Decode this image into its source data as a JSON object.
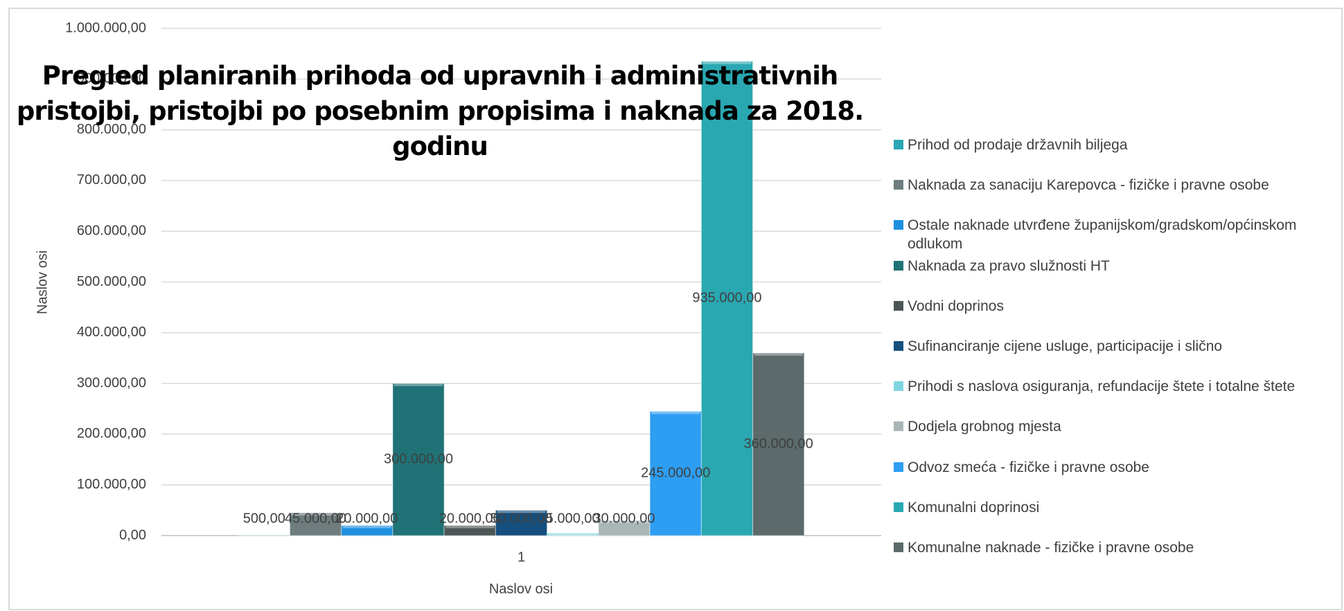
{
  "chart_data": {
    "type": "bar",
    "title": "Pregled planiranih prihoda od upravnih i administrativnih pristojbi, pristojbi po posebnim propisima i naknada za 2018. godinu",
    "x_label": "Naslov osi",
    "y_label": "Naslov osi",
    "categories": [
      "1"
    ],
    "series": [
      {
        "name": "Prihod od prodaje državnih biljega",
        "color": "#2aa6b4",
        "values": [
          500
        ],
        "value_labels": [
          "500,00"
        ]
      },
      {
        "name": "Naknada za sanaciju Karepovca - fizičke i pravne osobe",
        "color": "#6e7c7e",
        "values": [
          45000
        ],
        "value_labels": [
          "45.000,00"
        ]
      },
      {
        "name": "Ostale naknade utvrđene županijskom/gradskom/općinskom odlukom",
        "color": "#1e90e0",
        "values": [
          20000
        ],
        "value_labels": [
          "20.000,00"
        ]
      },
      {
        "name": "Naknada za pravo služnosti HT",
        "color": "#1f7275",
        "values": [
          300000
        ],
        "value_labels": [
          "300.000,00"
        ]
      },
      {
        "name": "Vodni doprinos",
        "color": "#4d5656",
        "values": [
          20000
        ],
        "value_labels": [
          "20.000,00"
        ]
      },
      {
        "name": "Sufinanciranje cijene usluge, participacije i slično",
        "color": "#144f7e",
        "values": [
          50000
        ],
        "value_labels": [
          "50.000,00"
        ]
      },
      {
        "name": "Prihodi s naslova osiguranja, refundacije štete i totalne štete",
        "color": "#7fd6e0",
        "values": [
          5000
        ],
        "value_labels": [
          "5.000,00"
        ]
      },
      {
        "name": "Dodjela grobnog mjesta",
        "color": "#a9b6b7",
        "values": [
          30000
        ],
        "value_labels": [
          "30.000,00"
        ]
      },
      {
        "name": "Odvoz smeća - fizičke i pravne osobe",
        "color": "#2d9ef2",
        "values": [
          245000
        ],
        "value_labels": [
          "245.000,00"
        ]
      },
      {
        "name": "Komunalni doprinosi",
        "color": "#2aa8b2",
        "values": [
          935000
        ],
        "value_labels": [
          "935.000,00"
        ]
      },
      {
        "name": "Komunalne naknade - fizičke i pravne osobe",
        "color": "#5c6a6b",
        "values": [
          360000
        ],
        "value_labels": [
          "360.000,00"
        ]
      }
    ],
    "ylim": [
      0,
      1000000
    ],
    "yticks": [
      {
        "value": 0,
        "label": "0,00"
      },
      {
        "value": 100000,
        "label": "100.000,00"
      },
      {
        "value": 200000,
        "label": "200.000,00"
      },
      {
        "value": 300000,
        "label": "300.000,00"
      },
      {
        "value": 400000,
        "label": "400.000,00"
      },
      {
        "value": 500000,
        "label": "500.000,00"
      },
      {
        "value": 600000,
        "label": "600.000,00"
      },
      {
        "value": 700000,
        "label": "700.000,00"
      },
      {
        "value": 800000,
        "label": "800.000,00"
      },
      {
        "value": 900000,
        "label": "900.000,00"
      },
      {
        "value": 1000000,
        "label": "1.000.000,00"
      }
    ],
    "grid": true,
    "legend": "right"
  }
}
